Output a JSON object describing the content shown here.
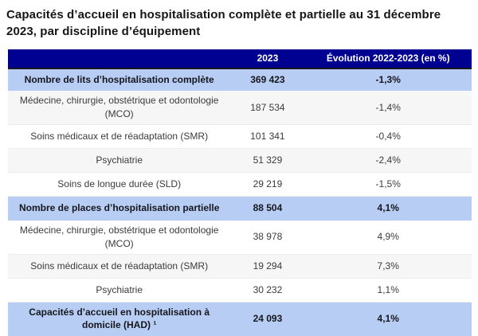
{
  "title": "Capacités d’accueil en hospitalisation complète et partielle au 31 décembre 2023, par discipline d’équipement",
  "colors": {
    "header_background": "#000091",
    "header_text": "#ffffff",
    "highlight_row_background": "#b8cdf4",
    "shaded_row_background": "#f6f6f6",
    "body_text": "#3b3b3b"
  },
  "chart_data": {
    "type": "table",
    "title": "Capacités d’accueil en hospitalisation complète et partielle au 31 décembre 2023, par discipline d’équipement",
    "columns": {
      "label": "",
      "year": "2023",
      "evolution": "Évolution 2022-2023 (en %)"
    },
    "rows": [
      {
        "label": "Nombre de lits d’hospitalisation complète",
        "value_2023": "369 423",
        "evolution": "-1,3%",
        "emphasis": true
      },
      {
        "label": "Médecine, chirurgie, obstétrique et odontologie (MCO)",
        "value_2023": "187 534",
        "evolution": "-1,4%",
        "emphasis": false
      },
      {
        "label": "Soins médicaux et de réadaptation (SMR)",
        "value_2023": "101 341",
        "evolution": "-0,4%",
        "emphasis": false
      },
      {
        "label": "Psychiatrie",
        "value_2023": "51 329",
        "evolution": "-2,4%",
        "emphasis": false
      },
      {
        "label": "Soins de longue durée (SLD)",
        "value_2023": "29 219",
        "evolution": "-1,5%",
        "emphasis": false
      },
      {
        "label": "Nombre de places d’hospitalisation partielle",
        "value_2023": "88 504",
        "evolution": "4,1%",
        "emphasis": true
      },
      {
        "label": "Médecine, chirurgie, obstétrique et odontologie (MCO)",
        "value_2023": "38 978",
        "evolution": "4,9%",
        "emphasis": false
      },
      {
        "label": "Soins médicaux et de réadaptation (SMR)",
        "value_2023": "19 294",
        "evolution": "7,3%",
        "emphasis": false
      },
      {
        "label": "Psychiatrie",
        "value_2023": "30 232",
        "evolution": "1,1%",
        "emphasis": false
      },
      {
        "label": "Capacités d’accueil en hospitalisation à domicile (HAD) ¹",
        "value_2023": "24 093",
        "evolution": "4,1%",
        "emphasis": true
      }
    ]
  }
}
